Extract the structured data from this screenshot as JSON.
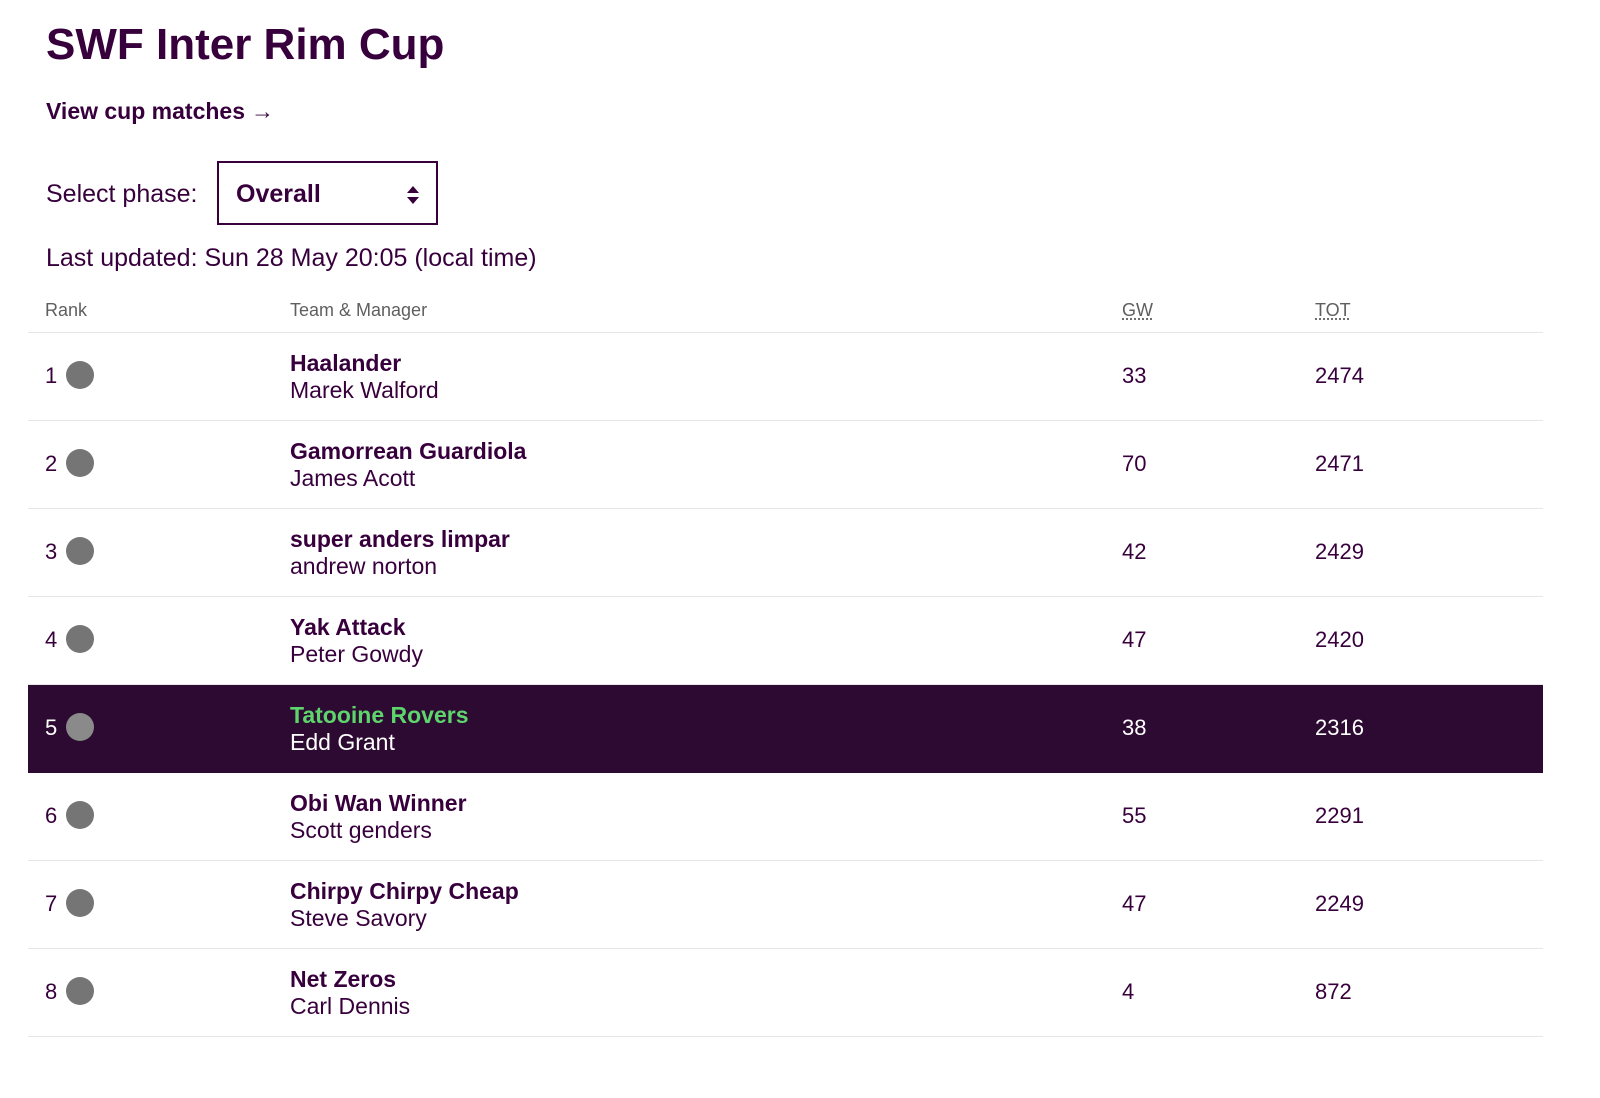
{
  "header": {
    "title": "SWF Inter Rim Cup",
    "cup_link_label": "View cup matches",
    "cup_link_arrow": "→"
  },
  "phase": {
    "label": "Select phase:",
    "selected": "Overall"
  },
  "last_updated": "Last updated: Sun 28 May 20:05 (local time)",
  "table": {
    "columns": {
      "rank": "Rank",
      "team_manager": "Team & Manager",
      "gw": "GW",
      "tot": "TOT"
    },
    "rows": [
      {
        "rank": "1",
        "team": "Haalander",
        "manager": "Marek Walford",
        "gw": "33",
        "tot": "2474"
      },
      {
        "rank": "2",
        "team": "Gamorrean Guardiola",
        "manager": "James Acott",
        "gw": "70",
        "tot": "2471"
      },
      {
        "rank": "3",
        "team": "super anders limpar",
        "manager": "andrew norton",
        "gw": "42",
        "tot": "2429"
      },
      {
        "rank": "4",
        "team": "Yak Attack",
        "manager": "Peter Gowdy",
        "gw": "47",
        "tot": "2420"
      },
      {
        "rank": "5",
        "team": "Tatooine Rovers",
        "manager": "Edd Grant",
        "gw": "38",
        "tot": "2316"
      },
      {
        "rank": "6",
        "team": "Obi Wan Winner",
        "manager": "Scott genders",
        "gw": "55",
        "tot": "2291"
      },
      {
        "rank": "7",
        "team": "Chirpy Chirpy Cheap",
        "manager": "Steve Savory",
        "gw": "47",
        "tot": "2249"
      },
      {
        "rank": "8",
        "team": "Net Zeros",
        "manager": "Carl Dennis",
        "gw": "4",
        "tot": "872"
      }
    ]
  },
  "colors": {
    "primary": "#37003c",
    "highlight_row_bg": "#2d0a31",
    "highlight_team_text": "#5ed56c",
    "movement_dot": "#757575"
  }
}
